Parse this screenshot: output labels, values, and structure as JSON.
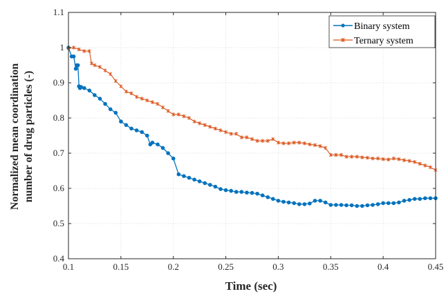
{
  "chart_data": {
    "type": "line",
    "xlabel": "Time (sec)",
    "ylabel": [
      "Normalized mean coordination",
      "number of drug particles (-)"
    ],
    "xlim": [
      0.1,
      0.45
    ],
    "ylim": [
      0.4,
      1.1
    ],
    "xticks": [
      "0.1",
      "0.15",
      "0.2",
      "0.25",
      "0.3",
      "0.35",
      "0.4",
      "0.45"
    ],
    "yticks": [
      "0.4",
      "0.5",
      "0.6",
      "0.7",
      "0.8",
      "0.9",
      "1",
      "1.1"
    ],
    "grid": true,
    "legend_position": "top-right",
    "series": [
      {
        "name": "Binary system",
        "color": "#0072BD",
        "marker": "dot",
        "x": [
          0.1,
          0.103,
          0.105,
          0.107,
          0.108,
          0.109,
          0.11,
          0.111,
          0.112,
          0.115,
          0.12,
          0.125,
          0.13,
          0.135,
          0.14,
          0.145,
          0.15,
          0.155,
          0.16,
          0.165,
          0.17,
          0.175,
          0.178,
          0.18,
          0.185,
          0.19,
          0.195,
          0.2,
          0.205,
          0.21,
          0.215,
          0.22,
          0.225,
          0.23,
          0.235,
          0.24,
          0.245,
          0.25,
          0.255,
          0.26,
          0.265,
          0.27,
          0.275,
          0.28,
          0.285,
          0.29,
          0.295,
          0.3,
          0.305,
          0.31,
          0.315,
          0.32,
          0.325,
          0.33,
          0.335,
          0.34,
          0.345,
          0.35,
          0.355,
          0.36,
          0.365,
          0.37,
          0.375,
          0.38,
          0.385,
          0.39,
          0.395,
          0.4,
          0.405,
          0.41,
          0.415,
          0.42,
          0.425,
          0.43,
          0.435,
          0.44,
          0.445,
          0.45
        ],
        "y": [
          1.0,
          0.975,
          0.975,
          0.94,
          0.95,
          0.95,
          0.89,
          0.885,
          0.888,
          0.885,
          0.878,
          0.865,
          0.855,
          0.84,
          0.825,
          0.815,
          0.79,
          0.78,
          0.77,
          0.765,
          0.76,
          0.75,
          0.725,
          0.73,
          0.725,
          0.715,
          0.7,
          0.685,
          0.64,
          0.635,
          0.63,
          0.625,
          0.62,
          0.615,
          0.61,
          0.605,
          0.598,
          0.595,
          0.593,
          0.59,
          0.59,
          0.588,
          0.587,
          0.585,
          0.58,
          0.575,
          0.57,
          0.565,
          0.562,
          0.56,
          0.558,
          0.555,
          0.555,
          0.557,
          0.565,
          0.565,
          0.56,
          0.553,
          0.553,
          0.553,
          0.552,
          0.552,
          0.55,
          0.55,
          0.552,
          0.553,
          0.555,
          0.558,
          0.558,
          0.558,
          0.56,
          0.565,
          0.567,
          0.57,
          0.57,
          0.572,
          0.572,
          0.572
        ]
      },
      {
        "name": "Ternary system",
        "color": "#D95319",
        "marker": "star",
        "x": [
          0.1,
          0.105,
          0.11,
          0.115,
          0.12,
          0.122,
          0.125,
          0.13,
          0.135,
          0.14,
          0.145,
          0.15,
          0.155,
          0.16,
          0.165,
          0.17,
          0.175,
          0.18,
          0.185,
          0.19,
          0.195,
          0.2,
          0.205,
          0.21,
          0.215,
          0.22,
          0.225,
          0.23,
          0.235,
          0.24,
          0.245,
          0.25,
          0.255,
          0.26,
          0.265,
          0.27,
          0.275,
          0.28,
          0.285,
          0.29,
          0.295,
          0.3,
          0.305,
          0.31,
          0.315,
          0.32,
          0.325,
          0.33,
          0.335,
          0.34,
          0.345,
          0.35,
          0.355,
          0.36,
          0.365,
          0.37,
          0.375,
          0.38,
          0.385,
          0.39,
          0.395,
          0.4,
          0.405,
          0.41,
          0.415,
          0.42,
          0.425,
          0.43,
          0.435,
          0.44,
          0.445,
          0.45
        ],
        "y": [
          0.998,
          1.0,
          0.995,
          0.99,
          0.99,
          0.955,
          0.95,
          0.945,
          0.935,
          0.925,
          0.905,
          0.89,
          0.875,
          0.87,
          0.86,
          0.855,
          0.85,
          0.845,
          0.84,
          0.83,
          0.82,
          0.81,
          0.81,
          0.805,
          0.8,
          0.79,
          0.785,
          0.78,
          0.775,
          0.77,
          0.765,
          0.76,
          0.755,
          0.755,
          0.745,
          0.745,
          0.74,
          0.735,
          0.735,
          0.735,
          0.74,
          0.73,
          0.728,
          0.728,
          0.73,
          0.73,
          0.728,
          0.725,
          0.723,
          0.72,
          0.715,
          0.695,
          0.695,
          0.695,
          0.69,
          0.69,
          0.69,
          0.688,
          0.687,
          0.685,
          0.685,
          0.683,
          0.682,
          0.685,
          0.683,
          0.68,
          0.678,
          0.675,
          0.67,
          0.665,
          0.66,
          0.652
        ]
      }
    ]
  }
}
